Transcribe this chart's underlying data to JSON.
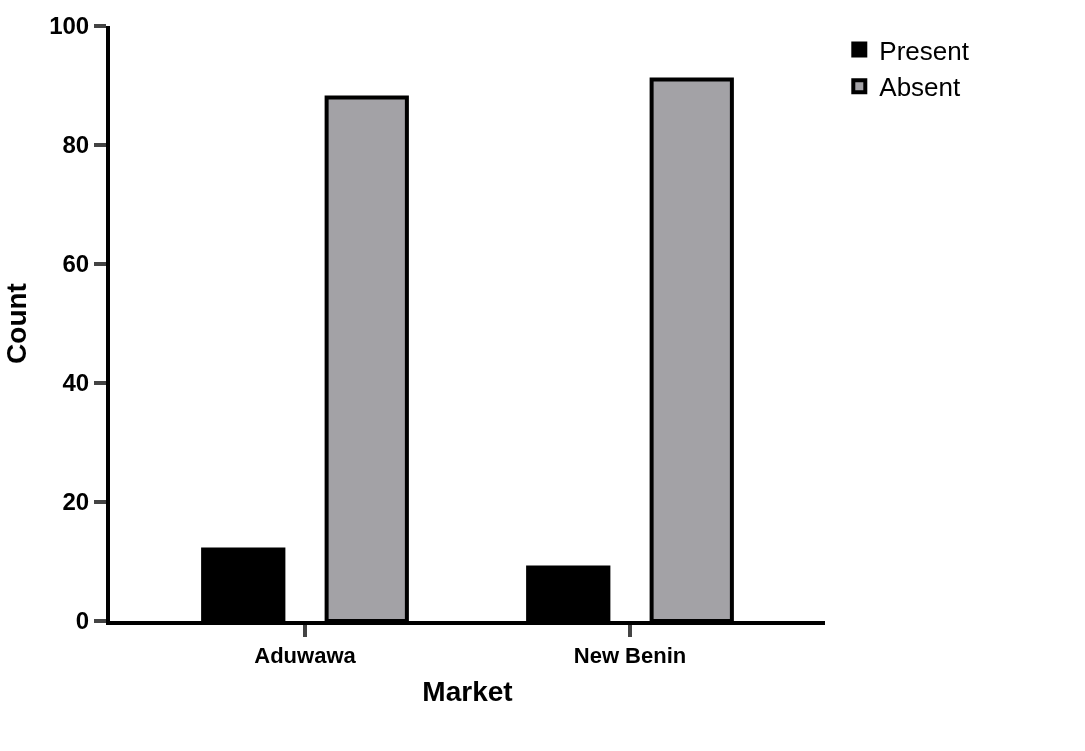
{
  "chart_data": {
    "type": "bar",
    "xlabel": "Market",
    "ylabel": "Count",
    "categories": [
      "Aduwawa",
      "New Benin"
    ],
    "series": [
      {
        "name": "Present",
        "color": "#000000",
        "values": [
          12,
          9
        ]
      },
      {
        "name": "Absent",
        "color": "#a3a2a6",
        "values": [
          88,
          91
        ]
      }
    ],
    "ylim": [
      0,
      100
    ],
    "yticks": [
      0,
      20,
      40,
      60,
      80,
      100
    ],
    "legend": "top right"
  }
}
